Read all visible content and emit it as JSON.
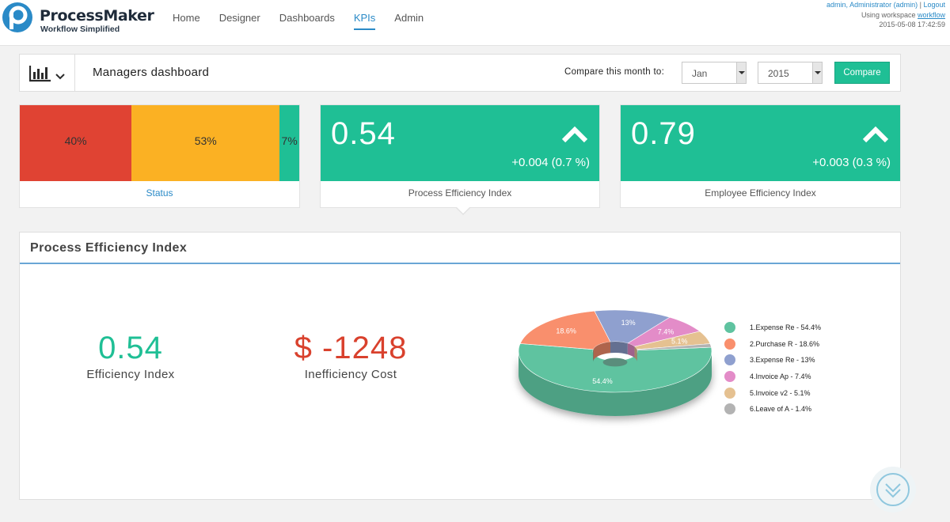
{
  "brand": {
    "name": "ProcessMaker",
    "tagline": "Workflow Simplified"
  },
  "nav": [
    {
      "label": "Home",
      "active": false
    },
    {
      "label": "Designer",
      "active": false
    },
    {
      "label": "Dashboards",
      "active": false
    },
    {
      "label": "KPIs",
      "active": true
    },
    {
      "label": "Admin",
      "active": false
    }
  ],
  "user": {
    "name": "admin, Administrator (admin)",
    "separator": "|",
    "logout": "Logout",
    "workspace_prefix": "Using workspace",
    "workspace": "workflow",
    "datetime": "2015-05-08 17:42:59"
  },
  "header": {
    "title": "Managers dashboard",
    "compare_label": "Compare this month to:",
    "month_value": "Jan",
    "year_value": "2015",
    "compare_button": "Compare"
  },
  "status_card": {
    "label": "Status",
    "segments": [
      {
        "text": "40%",
        "value": 40,
        "color": "#e04333"
      },
      {
        "text": "53%",
        "value": 53,
        "color": "#fbb123"
      },
      {
        "text": "7%",
        "value": 7,
        "color": "#1fbf95"
      }
    ]
  },
  "kpi_cards": [
    {
      "value": "0.54",
      "delta": "+0.004 (0.7 %)",
      "label": "Process Efficiency Index"
    },
    {
      "value": "0.79",
      "delta": "+0.003 (0.3 %)",
      "label": "Employee Efficiency Index"
    }
  ],
  "panel": {
    "title": "Process Efficiency Index",
    "efficiency": {
      "value": "0.54",
      "label": "Efficiency Index",
      "color": "#1fbf95"
    },
    "cost": {
      "value": "$ -1248",
      "label": "Inefficiency Cost",
      "color": "#d9412d"
    }
  },
  "chart_data": {
    "type": "pie",
    "labels": [
      "1.Expense Re",
      "2.Purchase R",
      "3.Expense Re",
      "4.Invoice Ap",
      "5.Invoice v2",
      "6.Leave of A"
    ],
    "values": [
      54.4,
      18.6,
      13,
      7.4,
      5.1,
      1.4
    ],
    "slice_labels": [
      "54.4%",
      "18.6%",
      "13%",
      "7.4%",
      "5.1%",
      ""
    ],
    "legend": [
      "1.Expense Re - 54.4%",
      "2.Purchase R - 18.6%",
      "3.Expense Re - 13%",
      "4.Invoice Ap - 7.4%",
      "5.Invoice v2 - 5.1%",
      "6.Leave of A - 1.4%"
    ],
    "colors": [
      "#5fc3a0",
      "#f98f6d",
      "#8fa0cf",
      "#e38cc8",
      "#e5c191",
      "#b3b3b3"
    ],
    "legend_position": "right"
  },
  "icons": {
    "chart": "bar-chart-icon",
    "dropdown": "chevron-down-icon",
    "up": "chevron-up-icon",
    "scroll": "double-chevron-down-icon"
  }
}
